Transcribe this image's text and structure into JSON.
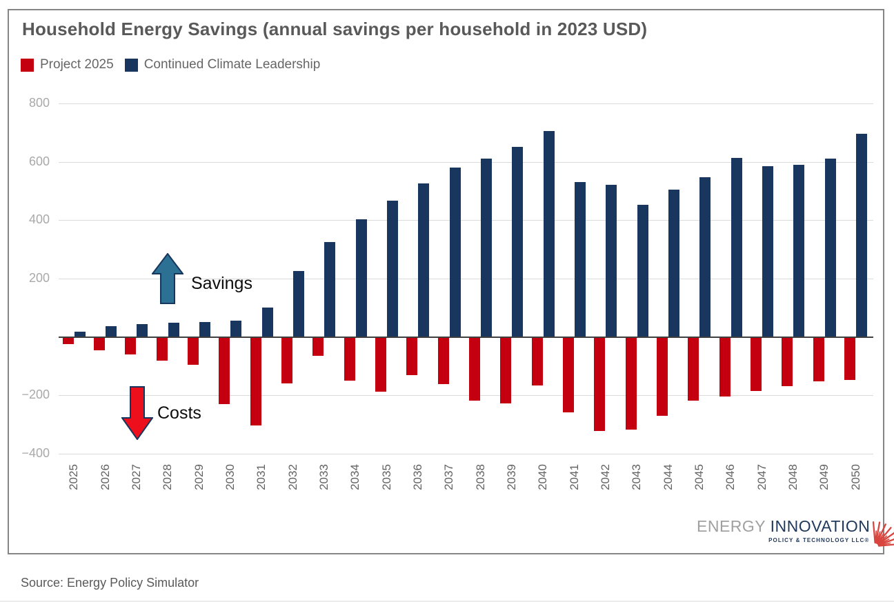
{
  "title": "Household Energy Savings (annual savings per household in 2023 USD)",
  "legend": [
    {
      "label": "Project 2025",
      "color": "#c40010"
    },
    {
      "label": "Continued Climate Leadership",
      "color": "#19375e"
    }
  ],
  "annotations": {
    "savings_label": "Savings",
    "costs_label": "Costs",
    "savings_arrow_fill": "#2c7094",
    "costs_arrow_fill": "#ee0f1d",
    "arrow_outline": "#17365d"
  },
  "logo": {
    "word1": "ENERGY ",
    "word2": "INNOVATION",
    "subtitle": "POLICY & TECHNOLOGY LLC®"
  },
  "source": "Source: Energy Policy Simulator",
  "chart_data": {
    "type": "bar",
    "title": "Household Energy Savings (annual savings per household in 2023 USD)",
    "categories": [
      "2025",
      "2026",
      "2027",
      "2028",
      "2029",
      "2030",
      "2031",
      "2032",
      "2033",
      "2034",
      "2035",
      "2036",
      "2037",
      "2038",
      "2039",
      "2040",
      "2041",
      "2042",
      "2043",
      "2044",
      "2045",
      "2046",
      "2047",
      "2048",
      "2049",
      "2050"
    ],
    "series": [
      {
        "name": "Project 2025",
        "color": "#c40010",
        "values": [
          -25,
          -45,
          -60,
          -80,
          -95,
          -230,
          -303,
          -158,
          -65,
          -150,
          -188,
          -130,
          -162,
          -218,
          -228,
          -165,
          -258,
          -322,
          -318,
          -270,
          -218,
          -205,
          -186,
          -168,
          -153,
          -147
        ]
      },
      {
        "name": "Continued Climate Leadership",
        "color": "#19375e",
        "values": [
          18,
          38,
          43,
          48,
          52,
          57,
          100,
          225,
          325,
          402,
          468,
          525,
          580,
          610,
          652,
          705,
          530,
          521,
          452,
          505,
          547,
          613,
          586,
          590,
          612,
          695
        ]
      }
    ],
    "ylim": [
      -400,
      800
    ],
    "yticks": [
      {
        "value": 800,
        "label": "800"
      },
      {
        "value": 600,
        "label": "600"
      },
      {
        "value": 400,
        "label": "400"
      },
      {
        "value": 200,
        "label": "200"
      },
      {
        "value": -200,
        "label": "−200"
      },
      {
        "value": -400,
        "label": "−400"
      }
    ],
    "grid": true,
    "legend_position": "top-left",
    "xlabel": "",
    "ylabel": ""
  }
}
